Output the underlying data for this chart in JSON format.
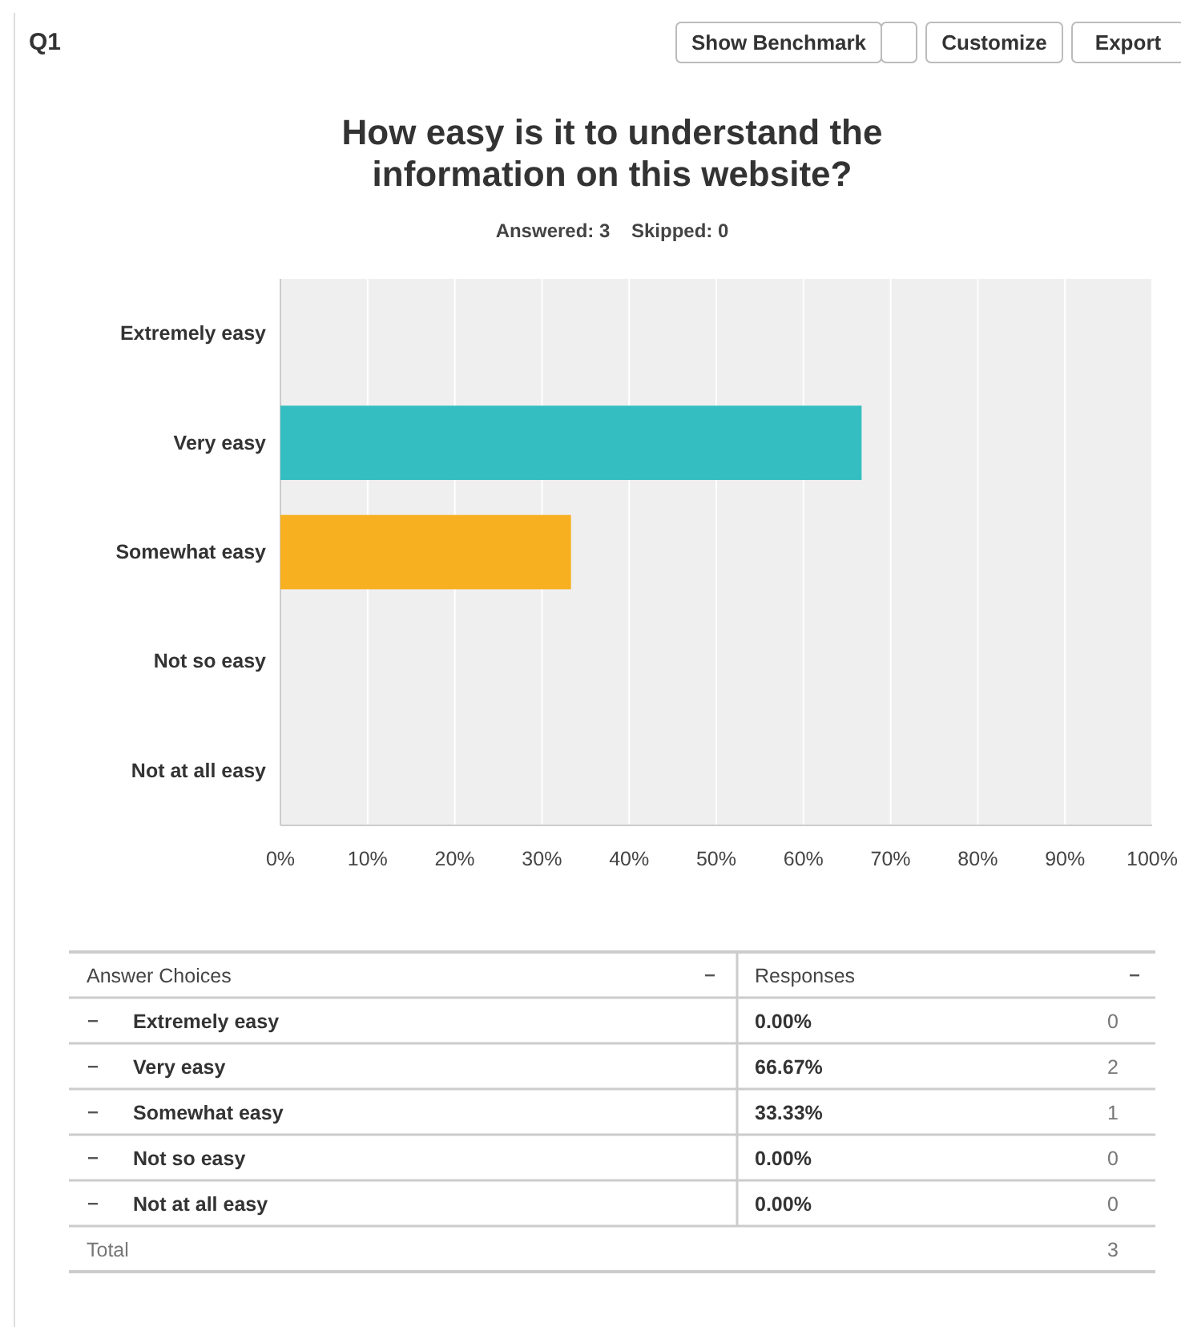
{
  "chart_data": {
    "type": "bar",
    "orientation": "horizontal",
    "title": "How easy is it to understand the information on this website?",
    "subtitle": "Answered: 3    Skipped: 0",
    "categories": [
      "Extremely easy",
      "Very easy",
      "Somewhat easy",
      "Not so easy",
      "Not at all easy"
    ],
    "values": [
      0,
      66.67,
      33.33,
      0,
      0
    ],
    "colors": [
      "#2dccd3",
      "#35bec1",
      "#f7b01f",
      "#a3cb61",
      "#e25b5f"
    ],
    "xlim": [
      0,
      100
    ],
    "xticks": [
      {
        "value": 0,
        "label": "0%"
      },
      {
        "value": 10,
        "label": "10%"
      },
      {
        "value": 20,
        "label": "20%"
      },
      {
        "value": 30,
        "label": "30%"
      },
      {
        "value": 40,
        "label": "40%"
      },
      {
        "value": 50,
        "label": "50%"
      },
      {
        "value": 60,
        "label": "60%"
      },
      {
        "value": 70,
        "label": "70%"
      },
      {
        "value": 80,
        "label": "80%"
      },
      {
        "value": 90,
        "label": "90%"
      },
      {
        "value": 100,
        "label": "100%"
      }
    ],
    "grid": "x",
    "annotations": [
      "Q1",
      "Show Benchmark",
      "Customize",
      "Export",
      "Answer Choices",
      "Responses",
      "0",
      "2",
      "1",
      "0",
      "0",
      "Total",
      "3",
      "0.00%",
      "66.67%",
      "33.33%",
      "0.00%",
      "0.00%"
    ]
  }
}
